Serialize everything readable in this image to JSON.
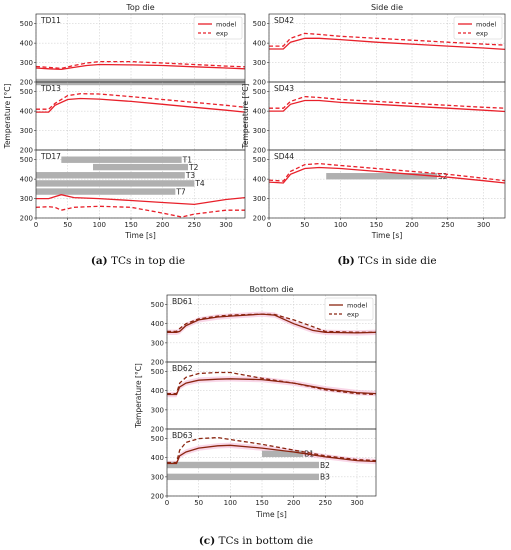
{
  "chart_data": [
    {
      "type": "line",
      "title": "Top die",
      "caption_letter": "(a)",
      "caption_text": "TCs in top die",
      "xlabel": "Time [s]",
      "ylabel": "Temperature [°C]",
      "xlim": [
        0,
        330
      ],
      "xticks": [
        0,
        50,
        100,
        150,
        200,
        250,
        300
      ],
      "legend": [
        "model",
        "exp"
      ],
      "legend_position": "top-right",
      "color": "#e8202a",
      "grid": true,
      "panels": [
        {
          "name": "TD11",
          "ylim": [
            200,
            550
          ],
          "yticks": [
            200,
            300,
            400,
            500
          ],
          "series": [
            {
              "name": "model",
              "x": [
                0,
                20,
                40,
                60,
                80,
                100,
                150,
                200,
                250,
                300,
                330
              ],
              "y": [
                272,
                268,
                265,
                275,
                285,
                290,
                288,
                285,
                278,
                272,
                268
              ]
            },
            {
              "name": "exp",
              "x": [
                0,
                20,
                40,
                60,
                80,
                100,
                150,
                200,
                250,
                300,
                330
              ],
              "y": [
                280,
                275,
                270,
                285,
                298,
                305,
                305,
                298,
                290,
                282,
                278
              ]
            }
          ],
          "bars": [
            {
              "start": 0,
              "end": 330,
              "y": 200,
              "label": ""
            }
          ]
        },
        {
          "name": "TD13",
          "ylim": [
            200,
            550
          ],
          "yticks": [
            200,
            300,
            400,
            500
          ],
          "series": [
            {
              "name": "model",
              "x": [
                0,
                20,
                30,
                50,
                70,
                100,
                150,
                200,
                250,
                300,
                330
              ],
              "y": [
                395,
                395,
                430,
                460,
                465,
                462,
                450,
                435,
                420,
                405,
                395
              ]
            },
            {
              "name": "exp",
              "x": [
                0,
                20,
                30,
                50,
                70,
                100,
                150,
                200,
                250,
                300,
                330
              ],
              "y": [
                410,
                410,
                440,
                480,
                490,
                488,
                475,
                460,
                445,
                430,
                420
              ]
            }
          ],
          "bars": []
        },
        {
          "name": "TD17",
          "ylim": [
            200,
            550
          ],
          "yticks": [
            200,
            300,
            400,
            500
          ],
          "series": [
            {
              "name": "model",
              "x": [
                0,
                20,
                30,
                40,
                60,
                100,
                150,
                200,
                250,
                300,
                330
              ],
              "y": [
                300,
                300,
                310,
                320,
                305,
                300,
                290,
                280,
                270,
                295,
                305
              ]
            },
            {
              "name": "exp",
              "x": [
                0,
                20,
                30,
                40,
                60,
                100,
                150,
                200,
                230,
                250,
                300,
                330
              ],
              "y": [
                255,
                258,
                255,
                240,
                255,
                260,
                255,
                225,
                205,
                220,
                240,
                240
              ]
            }
          ],
          "bars": [
            {
              "start": 40,
              "end": 230,
              "y": 500,
              "label": "T1"
            },
            {
              "start": 90,
              "end": 240,
              "y": 462,
              "label": "T2"
            },
            {
              "start": 0,
              "end": 235,
              "y": 420,
              "label": "T3"
            },
            {
              "start": 0,
              "end": 250,
              "y": 378,
              "label": "T4"
            },
            {
              "start": 0,
              "end": 220,
              "y": 336,
              "label": "T7"
            }
          ]
        }
      ]
    },
    {
      "type": "line",
      "title": "Side die",
      "caption_letter": "(b)",
      "caption_text": "TCs in side die",
      "xlabel": "Time [s]",
      "ylabel": "Temperature [°C]",
      "xlim": [
        0,
        330
      ],
      "xticks": [
        0,
        50,
        100,
        150,
        200,
        250,
        300
      ],
      "legend": [
        "model",
        "exp"
      ],
      "legend_position": "top-right",
      "color": "#e8202a",
      "grid": true,
      "panels": [
        {
          "name": "SD42",
          "ylim": [
            200,
            550
          ],
          "yticks": [
            200,
            300,
            400,
            500
          ],
          "series": [
            {
              "name": "model",
              "x": [
                0,
                20,
                30,
                50,
                70,
                100,
                150,
                200,
                250,
                300,
                330
              ],
              "y": [
                370,
                370,
                405,
                425,
                425,
                418,
                405,
                395,
                385,
                375,
                368
              ]
            },
            {
              "name": "exp",
              "x": [
                0,
                20,
                30,
                50,
                70,
                100,
                150,
                200,
                250,
                300,
                330
              ],
              "y": [
                385,
                385,
                425,
                450,
                445,
                435,
                425,
                415,
                405,
                395,
                390
              ]
            }
          ],
          "bars": []
        },
        {
          "name": "SD43",
          "ylim": [
            200,
            550
          ],
          "yticks": [
            200,
            300,
            400,
            500
          ],
          "series": [
            {
              "name": "model",
              "x": [
                0,
                20,
                30,
                50,
                70,
                100,
                150,
                200,
                250,
                300,
                330
              ],
              "y": [
                400,
                400,
                435,
                455,
                455,
                445,
                435,
                425,
                415,
                405,
                398
              ]
            },
            {
              "name": "exp",
              "x": [
                0,
                20,
                30,
                50,
                70,
                100,
                150,
                200,
                250,
                300,
                330
              ],
              "y": [
                415,
                415,
                450,
                475,
                470,
                460,
                450,
                440,
                430,
                420,
                415
              ]
            }
          ],
          "bars": []
        },
        {
          "name": "SD44",
          "ylim": [
            200,
            550
          ],
          "yticks": [
            200,
            300,
            400,
            500
          ],
          "series": [
            {
              "name": "model",
              "x": [
                0,
                20,
                30,
                50,
                70,
                100,
                150,
                200,
                250,
                300,
                330
              ],
              "y": [
                385,
                380,
                425,
                455,
                460,
                455,
                440,
                425,
                410,
                392,
                380
              ]
            },
            {
              "name": "exp",
              "x": [
                0,
                20,
                30,
                50,
                70,
                100,
                150,
                200,
                250,
                300,
                330
              ],
              "y": [
                395,
                390,
                440,
                475,
                480,
                470,
                455,
                440,
                425,
                405,
                392
              ]
            }
          ],
          "bars": [
            {
              "start": 80,
              "end": 235,
              "y": 415,
              "label": "S2"
            }
          ]
        }
      ]
    },
    {
      "type": "line",
      "title": "Bottom die",
      "caption_letter": "(c)",
      "caption_text": "TCs in bottom die",
      "xlabel": "Time [s]",
      "ylabel": "Temperature [°C]",
      "xlim": [
        0,
        330
      ],
      "xticks": [
        0,
        50,
        100,
        150,
        200,
        250,
        300
      ],
      "legend": [
        "model",
        "exp"
      ],
      "legend_position": "top-right",
      "color": "#8b2510",
      "band_color": "#f4b6d6",
      "grid": true,
      "panels": [
        {
          "name": "BD61",
          "ylim": [
            200,
            550
          ],
          "yticks": [
            200,
            300,
            400,
            500
          ],
          "series": [
            {
              "name": "model",
              "x": [
                0,
                15,
                20,
                30,
                50,
                80,
                100,
                150,
                170,
                200,
                230,
                250,
                300,
                330
              ],
              "y": [
                355,
                355,
                360,
                390,
                420,
                435,
                440,
                450,
                445,
                400,
                365,
                355,
                352,
                355
              ]
            },
            {
              "name": "exp",
              "x": [
                0,
                15,
                20,
                30,
                50,
                80,
                100,
                150,
                170,
                200,
                230,
                250,
                300,
                330
              ],
              "y": [
                360,
                360,
                375,
                400,
                425,
                440,
                445,
                450,
                448,
                420,
                385,
                360,
                355,
                355
              ]
            }
          ],
          "bars": []
        },
        {
          "name": "BD62",
          "ylim": [
            200,
            550
          ],
          "yticks": [
            200,
            300,
            400,
            500
          ],
          "series": [
            {
              "name": "model",
              "x": [
                0,
                15,
                20,
                30,
                50,
                80,
                100,
                150,
                200,
                250,
                300,
                330
              ],
              "y": [
                380,
                380,
                420,
                440,
                455,
                460,
                462,
                458,
                440,
                410,
                390,
                385
              ]
            },
            {
              "name": "exp",
              "x": [
                0,
                15,
                20,
                30,
                50,
                80,
                100,
                150,
                200,
                250,
                300,
                330
              ],
              "y": [
                385,
                385,
                440,
                470,
                490,
                495,
                495,
                465,
                440,
                405,
                385,
                380
              ]
            }
          ],
          "bars": []
        },
        {
          "name": "BD63",
          "ylim": [
            200,
            550
          ],
          "yticks": [
            200,
            300,
            400,
            500
          ],
          "series": [
            {
              "name": "model",
              "x": [
                0,
                15,
                20,
                30,
                50,
                80,
                100,
                150,
                200,
                250,
                300,
                330
              ],
              "y": [
                370,
                370,
                410,
                430,
                450,
                462,
                465,
                450,
                430,
                405,
                385,
                380
              ]
            },
            {
              "name": "exp",
              "x": [
                0,
                15,
                20,
                30,
                50,
                80,
                100,
                150,
                200,
                250,
                300,
                330
              ],
              "y": [
                375,
                375,
                440,
                480,
                500,
                505,
                495,
                470,
                440,
                410,
                390,
                385
              ]
            }
          ],
          "bars": [
            {
              "start": 150,
              "end": 215,
              "y": 420,
              "label": "B1"
            },
            {
              "start": 0,
              "end": 240,
              "y": 362,
              "label": "B2"
            },
            {
              "start": 0,
              "end": 240,
              "y": 300,
              "label": "B3"
            }
          ]
        }
      ]
    }
  ]
}
